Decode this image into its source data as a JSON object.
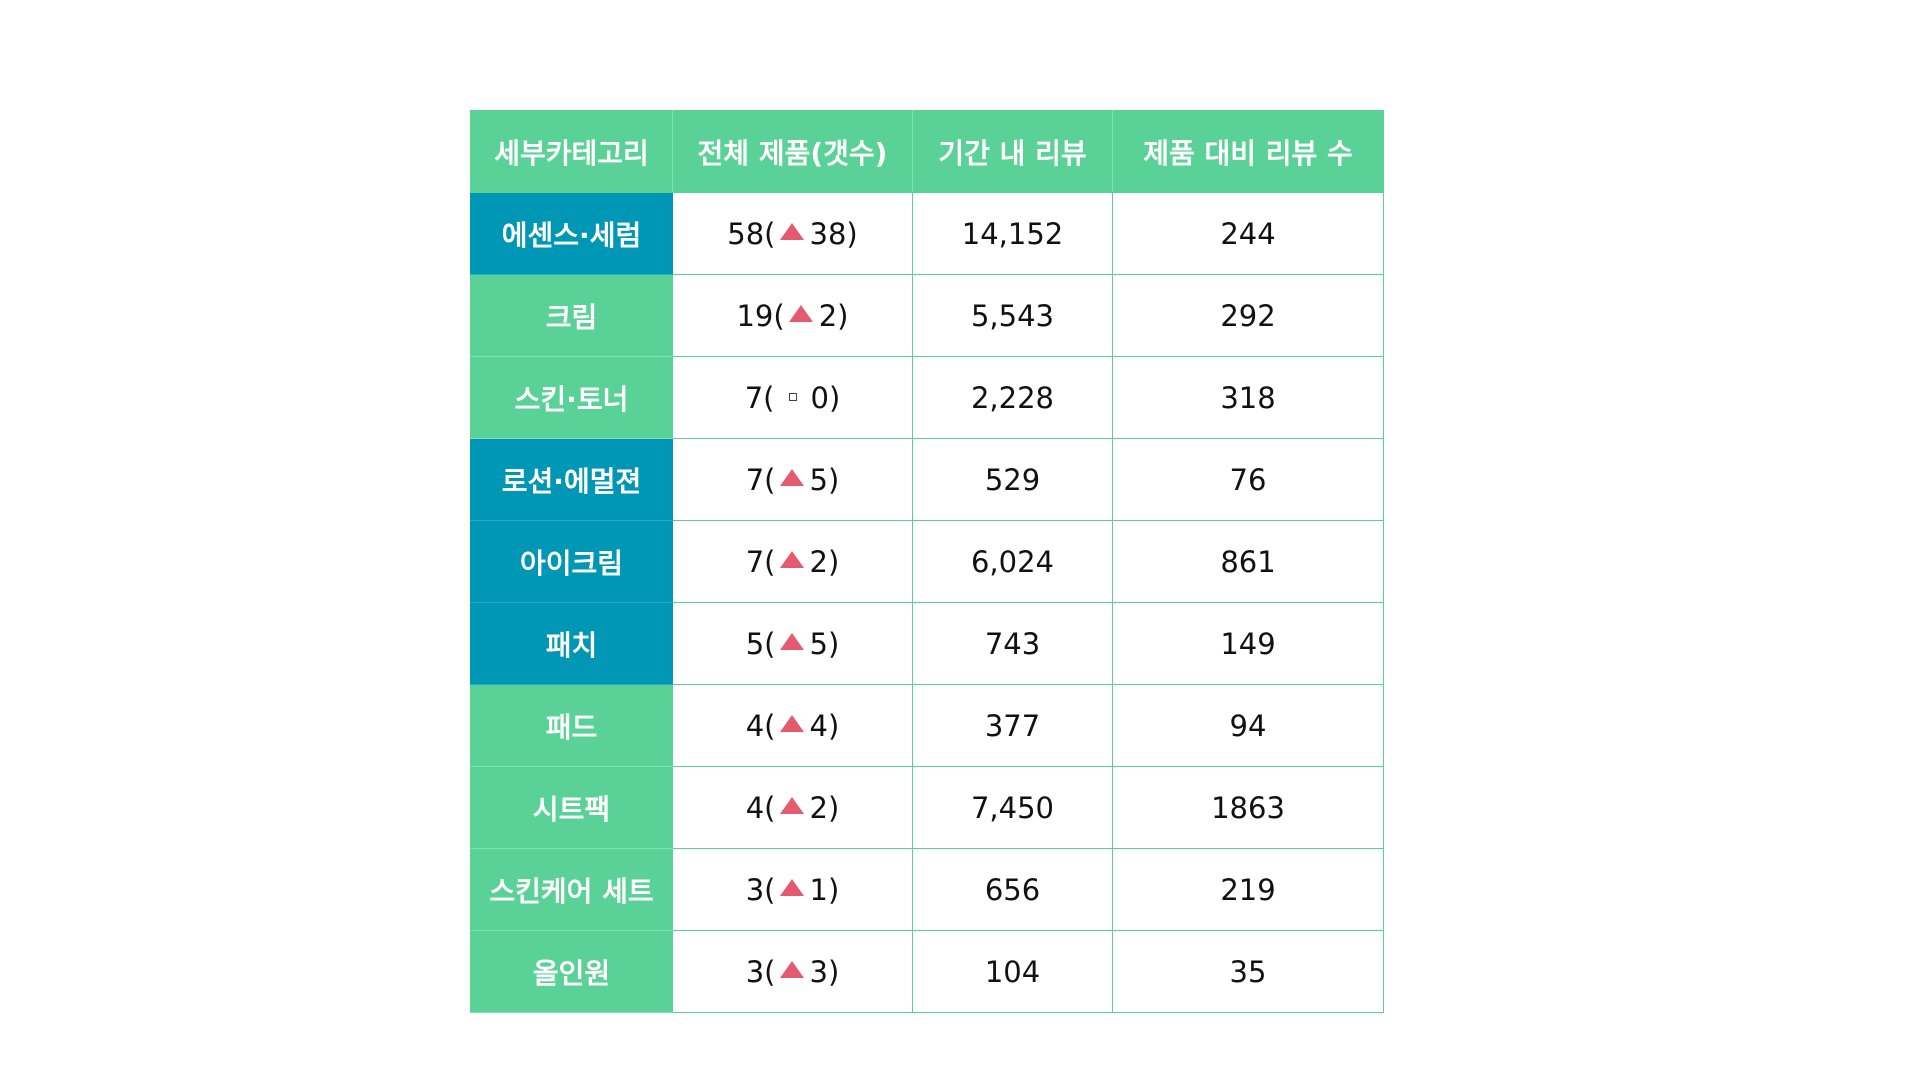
{
  "colors": {
    "header_bg": "#5ad196",
    "green_category": "#5ad196",
    "blue_category": "#0096b6",
    "increase_marker": "#e45a6e",
    "border": "#5ad196"
  },
  "table": {
    "headers": [
      "세부카테고리",
      "전체 제품(갯수)",
      "기간 내 리뷰",
      "제품 대비 리뷰 수"
    ],
    "rows": [
      {
        "category": "에센스·세럼",
        "category_color": "blue",
        "total": "58",
        "change_icon": "triangle-up-icon",
        "change": "38",
        "reviews": "14,152",
        "per_product": "244"
      },
      {
        "category": "크림",
        "category_color": "green",
        "total": "19",
        "change_icon": "triangle-up-icon",
        "change": "2",
        "reviews": "5,543",
        "per_product": "292"
      },
      {
        "category": "스킨·토너",
        "category_color": "green",
        "total": "7",
        "change_icon": "square-icon",
        "change": "0",
        "reviews": "2,228",
        "per_product": "318"
      },
      {
        "category": "로션·에멀젼",
        "category_color": "blue",
        "total": "7",
        "change_icon": "triangle-up-icon",
        "change": "5",
        "reviews": "529",
        "per_product": "76"
      },
      {
        "category": "아이크림",
        "category_color": "blue",
        "total": "7",
        "change_icon": "triangle-up-icon",
        "change": "2",
        "reviews": "6,024",
        "per_product": "861"
      },
      {
        "category": "패치",
        "category_color": "blue",
        "total": "5",
        "change_icon": "triangle-up-icon",
        "change": "5",
        "reviews": "743",
        "per_product": "149"
      },
      {
        "category": "패드",
        "category_color": "green",
        "total": "4",
        "change_icon": "triangle-up-icon",
        "change": "4",
        "reviews": "377",
        "per_product": "94"
      },
      {
        "category": "시트팩",
        "category_color": "green",
        "total": "4",
        "change_icon": "triangle-up-icon",
        "change": "2",
        "reviews": "7,450",
        "per_product": "1863"
      },
      {
        "category": "스킨케어 세트",
        "category_color": "green",
        "total": "3",
        "change_icon": "triangle-up-icon",
        "change": "1",
        "reviews": "656",
        "per_product": "219"
      },
      {
        "category": "올인원",
        "category_color": "green",
        "total": "3",
        "change_icon": "triangle-up-icon",
        "change": "3",
        "reviews": "104",
        "per_product": "35"
      }
    ]
  }
}
